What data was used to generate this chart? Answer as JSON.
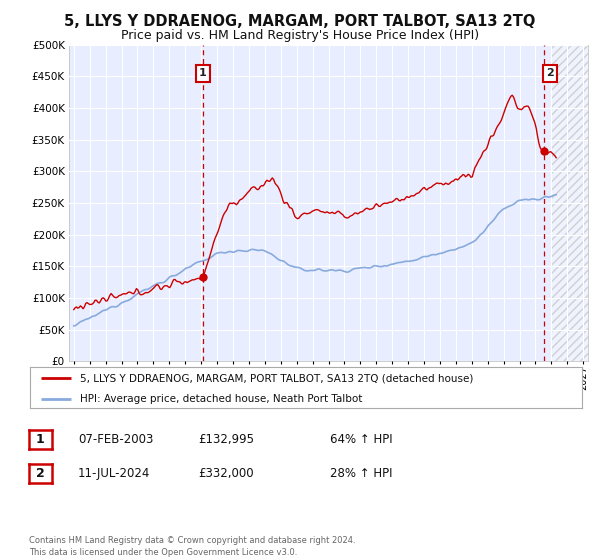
{
  "title": "5, LLYS Y DDRAENOG, MARGAM, PORT TALBOT, SA13 2TQ",
  "subtitle": "Price paid vs. HM Land Registry's House Price Index (HPI)",
  "title_fontsize": 10.5,
  "subtitle_fontsize": 9,
  "background_color": "#ffffff",
  "plot_background": "#e8eeff",
  "grid_color": "#ffffff",
  "hatch_color": "#cccccc",
  "legend_line1": "5, LLYS Y DDRAENOG, MARGAM, PORT TALBOT, SA13 2TQ (detached house)",
  "legend_line2": "HPI: Average price, detached house, Neath Port Talbot",
  "sale1_date": "07-FEB-2003",
  "sale1_price": "£132,995",
  "sale1_hpi": "64% ↑ HPI",
  "sale2_date": "11-JUL-2024",
  "sale2_price": "£332,000",
  "sale2_hpi": "28% ↑ HPI",
  "footer": "Contains HM Land Registry data © Crown copyright and database right 2024.\nThis data is licensed under the Open Government Licence v3.0.",
  "red_color": "#cc0000",
  "blue_color": "#88aadd",
  "ylim": [
    0,
    500000
  ],
  "yticks": [
    0,
    50000,
    100000,
    150000,
    200000,
    250000,
    300000,
    350000,
    400000,
    450000,
    500000
  ],
  "sale1_year": 2003.1,
  "sale1_value": 132995,
  "sale2_year": 2024.53,
  "sale2_value": 332000,
  "xmin": 1994.7,
  "xmax": 2027.3,
  "hatch_start": 2025.0
}
